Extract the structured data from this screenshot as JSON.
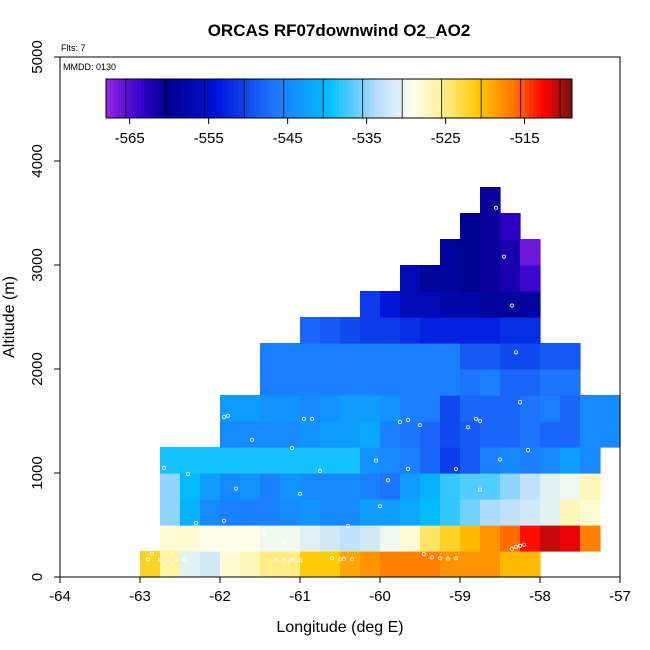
{
  "chart_data": {
    "type": "heatmap",
    "title": "ORCAS RF07downwind O2_AO2",
    "xlabel": "Longitude (deg E)",
    "ylabel": "Altitude (m)",
    "flts_label": "Flts: 7",
    "mmdd_label": "MMDD: 0130",
    "xlim": [
      -64,
      -57
    ],
    "ylim": [
      0,
      5000
    ],
    "x_ticks": [
      "-64",
      "-63",
      "-62",
      "-61",
      "-60",
      "-59",
      "-58",
      "-57"
    ],
    "y_ticks": [
      "0",
      "1000",
      "2000",
      "3000",
      "4000",
      "5000"
    ],
    "colorbar": {
      "range": [
        -568,
        -509
      ],
      "ticks": [
        "-565",
        "-555",
        "-545",
        "-535",
        "-525",
        "-515"
      ],
      "tick_values": [
        -565,
        -555,
        -545,
        -535,
        -525,
        -515
      ]
    },
    "cell_size": {
      "dlon": 0.25,
      "dalt": 250
    },
    "rows": [
      {
        "alt": [
          0,
          250
        ],
        "lon_start": -63.0,
        "values": [
          -522,
          -526,
          -531,
          -532,
          -528,
          -527,
          -525,
          -525,
          -521,
          -521,
          -519,
          -518,
          -517,
          -517,
          -517,
          -518,
          -518,
          -518,
          -520,
          -520
        ]
      },
      {
        "alt": [
          250,
          500
        ],
        "lon_start": -62.75,
        "values": [
          -528,
          -528,
          -529,
          -529,
          -529,
          -530,
          -530,
          -531,
          -532,
          -533,
          -532,
          -530,
          -528,
          -524,
          -522,
          -520,
          -518,
          -516,
          -513,
          -511,
          -512,
          -517
        ]
      },
      {
        "alt": [
          500,
          750
        ],
        "lon_start": -62.75,
        "values": [
          -535,
          -541,
          -545,
          -546,
          -546,
          -546,
          -545,
          -544,
          -545,
          -545,
          -543,
          -543,
          -542,
          -540,
          -538,
          -536,
          -534,
          -533,
          -532,
          -531,
          -527,
          -528
        ]
      },
      {
        "alt": [
          750,
          1000
        ],
        "lon_start": -62.75,
        "values": [
          -535,
          -540,
          -543,
          -545,
          -544,
          -546,
          -544,
          -545,
          -545,
          -545,
          -546,
          -547,
          -543,
          -541,
          -538,
          -537,
          -537,
          -535,
          -533,
          -531,
          -530,
          -527
        ]
      },
      {
        "alt": [
          1000,
          1250
        ],
        "lon_start": -62.75,
        "values": [
          -539,
          -539,
          -539,
          -539,
          -539,
          -539,
          -539,
          -539,
          -539,
          -539,
          -544,
          -545,
          -546,
          -548,
          -551,
          -549,
          -546,
          -545,
          -546,
          -545,
          -543,
          -545
        ]
      },
      {
        "alt": [
          1250,
          1500
        ],
        "lon_start": -62.0,
        "values": [
          -545,
          -545,
          -545,
          -545,
          -544,
          -543,
          -543,
          -542,
          -546,
          -547,
          -548,
          -550,
          -549,
          -548,
          -548,
          -547,
          -548,
          -548,
          -545,
          -545
        ]
      },
      {
        "alt": [
          1500,
          1750
        ],
        "lon_start": -62.0,
        "values": [
          -543,
          -543,
          -544,
          -544,
          -545,
          -544,
          -543,
          -543,
          -544,
          -546,
          -546,
          -550,
          -548,
          -548,
          -548,
          -547,
          -546,
          -548,
          -545,
          -545
        ]
      },
      {
        "alt": [
          1750,
          2000
        ],
        "lon_start": -61.5,
        "values": [
          -546,
          -546,
          -546,
          -546,
          -546,
          -546,
          -546,
          -546,
          -546,
          -546,
          -547,
          -546,
          -548,
          -548,
          -547,
          -547
        ]
      },
      {
        "alt": [
          2000,
          2250
        ],
        "lon_start": -61.5,
        "values": [
          -546,
          -546,
          -546,
          -546,
          -546,
          -546,
          -546,
          -546,
          -546,
          -546,
          -549,
          -549,
          -550,
          -550,
          -549,
          -549
        ]
      },
      {
        "alt": [
          2250,
          2500
        ],
        "lon_start": -61.0,
        "values": [
          -548,
          -549,
          -550,
          -551,
          -551,
          -552,
          -553,
          -553,
          -553,
          -553,
          -552,
          -552
        ]
      },
      {
        "alt": [
          2500,
          2750
        ],
        "lon_start": -60.25,
        "values": [
          -551,
          -554,
          -557,
          -557,
          -558,
          -558,
          -559,
          -559,
          -559
        ]
      },
      {
        "alt": [
          2750,
          3000
        ],
        "lon_start": -59.75,
        "values": [
          -557,
          -559,
          -559,
          -560,
          -561,
          -562,
          -564
        ]
      },
      {
        "alt": [
          3000,
          3250
        ],
        "lon_start": -59.25,
        "values": [
          -559,
          -560,
          -561,
          -562,
          -566
        ]
      },
      {
        "alt": [
          3250,
          3500
        ],
        "lon_start": -59.0,
        "values": [
          -560,
          -561,
          -563
        ]
      },
      {
        "alt": [
          3500,
          3750
        ],
        "lon_start": -58.75,
        "values": [
          -561
        ]
      }
    ],
    "flight_points": [
      [
        -62.9,
        170
      ],
      [
        -62.85,
        225
      ],
      [
        -62.75,
        165
      ],
      [
        -62.65,
        165
      ],
      [
        -62.55,
        165
      ],
      [
        -62.45,
        170
      ],
      [
        -61.3,
        165
      ],
      [
        -61.2,
        160
      ],
      [
        -61.1,
        165
      ],
      [
        -61.0,
        160
      ],
      [
        -60.6,
        180
      ],
      [
        -60.5,
        170
      ],
      [
        -60.45,
        175
      ],
      [
        -60.35,
        170
      ],
      [
        -59.45,
        220
      ],
      [
        -59.35,
        190
      ],
      [
        -59.25,
        180
      ],
      [
        -59.15,
        175
      ],
      [
        -59.05,
        180
      ],
      [
        -58.35,
        270
      ],
      [
        -58.3,
        290
      ],
      [
        -58.25,
        300
      ],
      [
        -58.2,
        310
      ],
      [
        -62.3,
        520
      ],
      [
        -61.95,
        540
      ],
      [
        -61.45,
        415
      ],
      [
        -61.2,
        330
      ],
      [
        -60.4,
        490
      ],
      [
        -60.0,
        680
      ],
      [
        -62.4,
        990
      ],
      [
        -61.8,
        850
      ],
      [
        -61.0,
        800
      ],
      [
        -59.9,
        930
      ],
      [
        -58.75,
        840
      ],
      [
        -62.7,
        1050
      ],
      [
        -61.6,
        1320
      ],
      [
        -61.1,
        1240
      ],
      [
        -60.75,
        1020
      ],
      [
        -60.05,
        1120
      ],
      [
        -59.65,
        1040
      ],
      [
        -59.05,
        1040
      ],
      [
        -58.5,
        1130
      ],
      [
        -58.15,
        1220
      ],
      [
        -62.2,
        1410
      ],
      [
        -62.05,
        1530
      ],
      [
        -61.95,
        1540
      ],
      [
        -61.9,
        1550
      ],
      [
        -60.95,
        1520
      ],
      [
        -60.85,
        1520
      ],
      [
        -59.75,
        1490
      ],
      [
        -59.65,
        1510
      ],
      [
        -59.5,
        1460
      ],
      [
        -58.9,
        1440
      ],
      [
        -58.8,
        1520
      ],
      [
        -58.75,
        1500
      ],
      [
        -58.25,
        1680
      ],
      [
        -58.3,
        2160
      ],
      [
        -58.35,
        2610
      ],
      [
        -58.45,
        3080
      ],
      [
        -58.55,
        3550
      ]
    ]
  }
}
